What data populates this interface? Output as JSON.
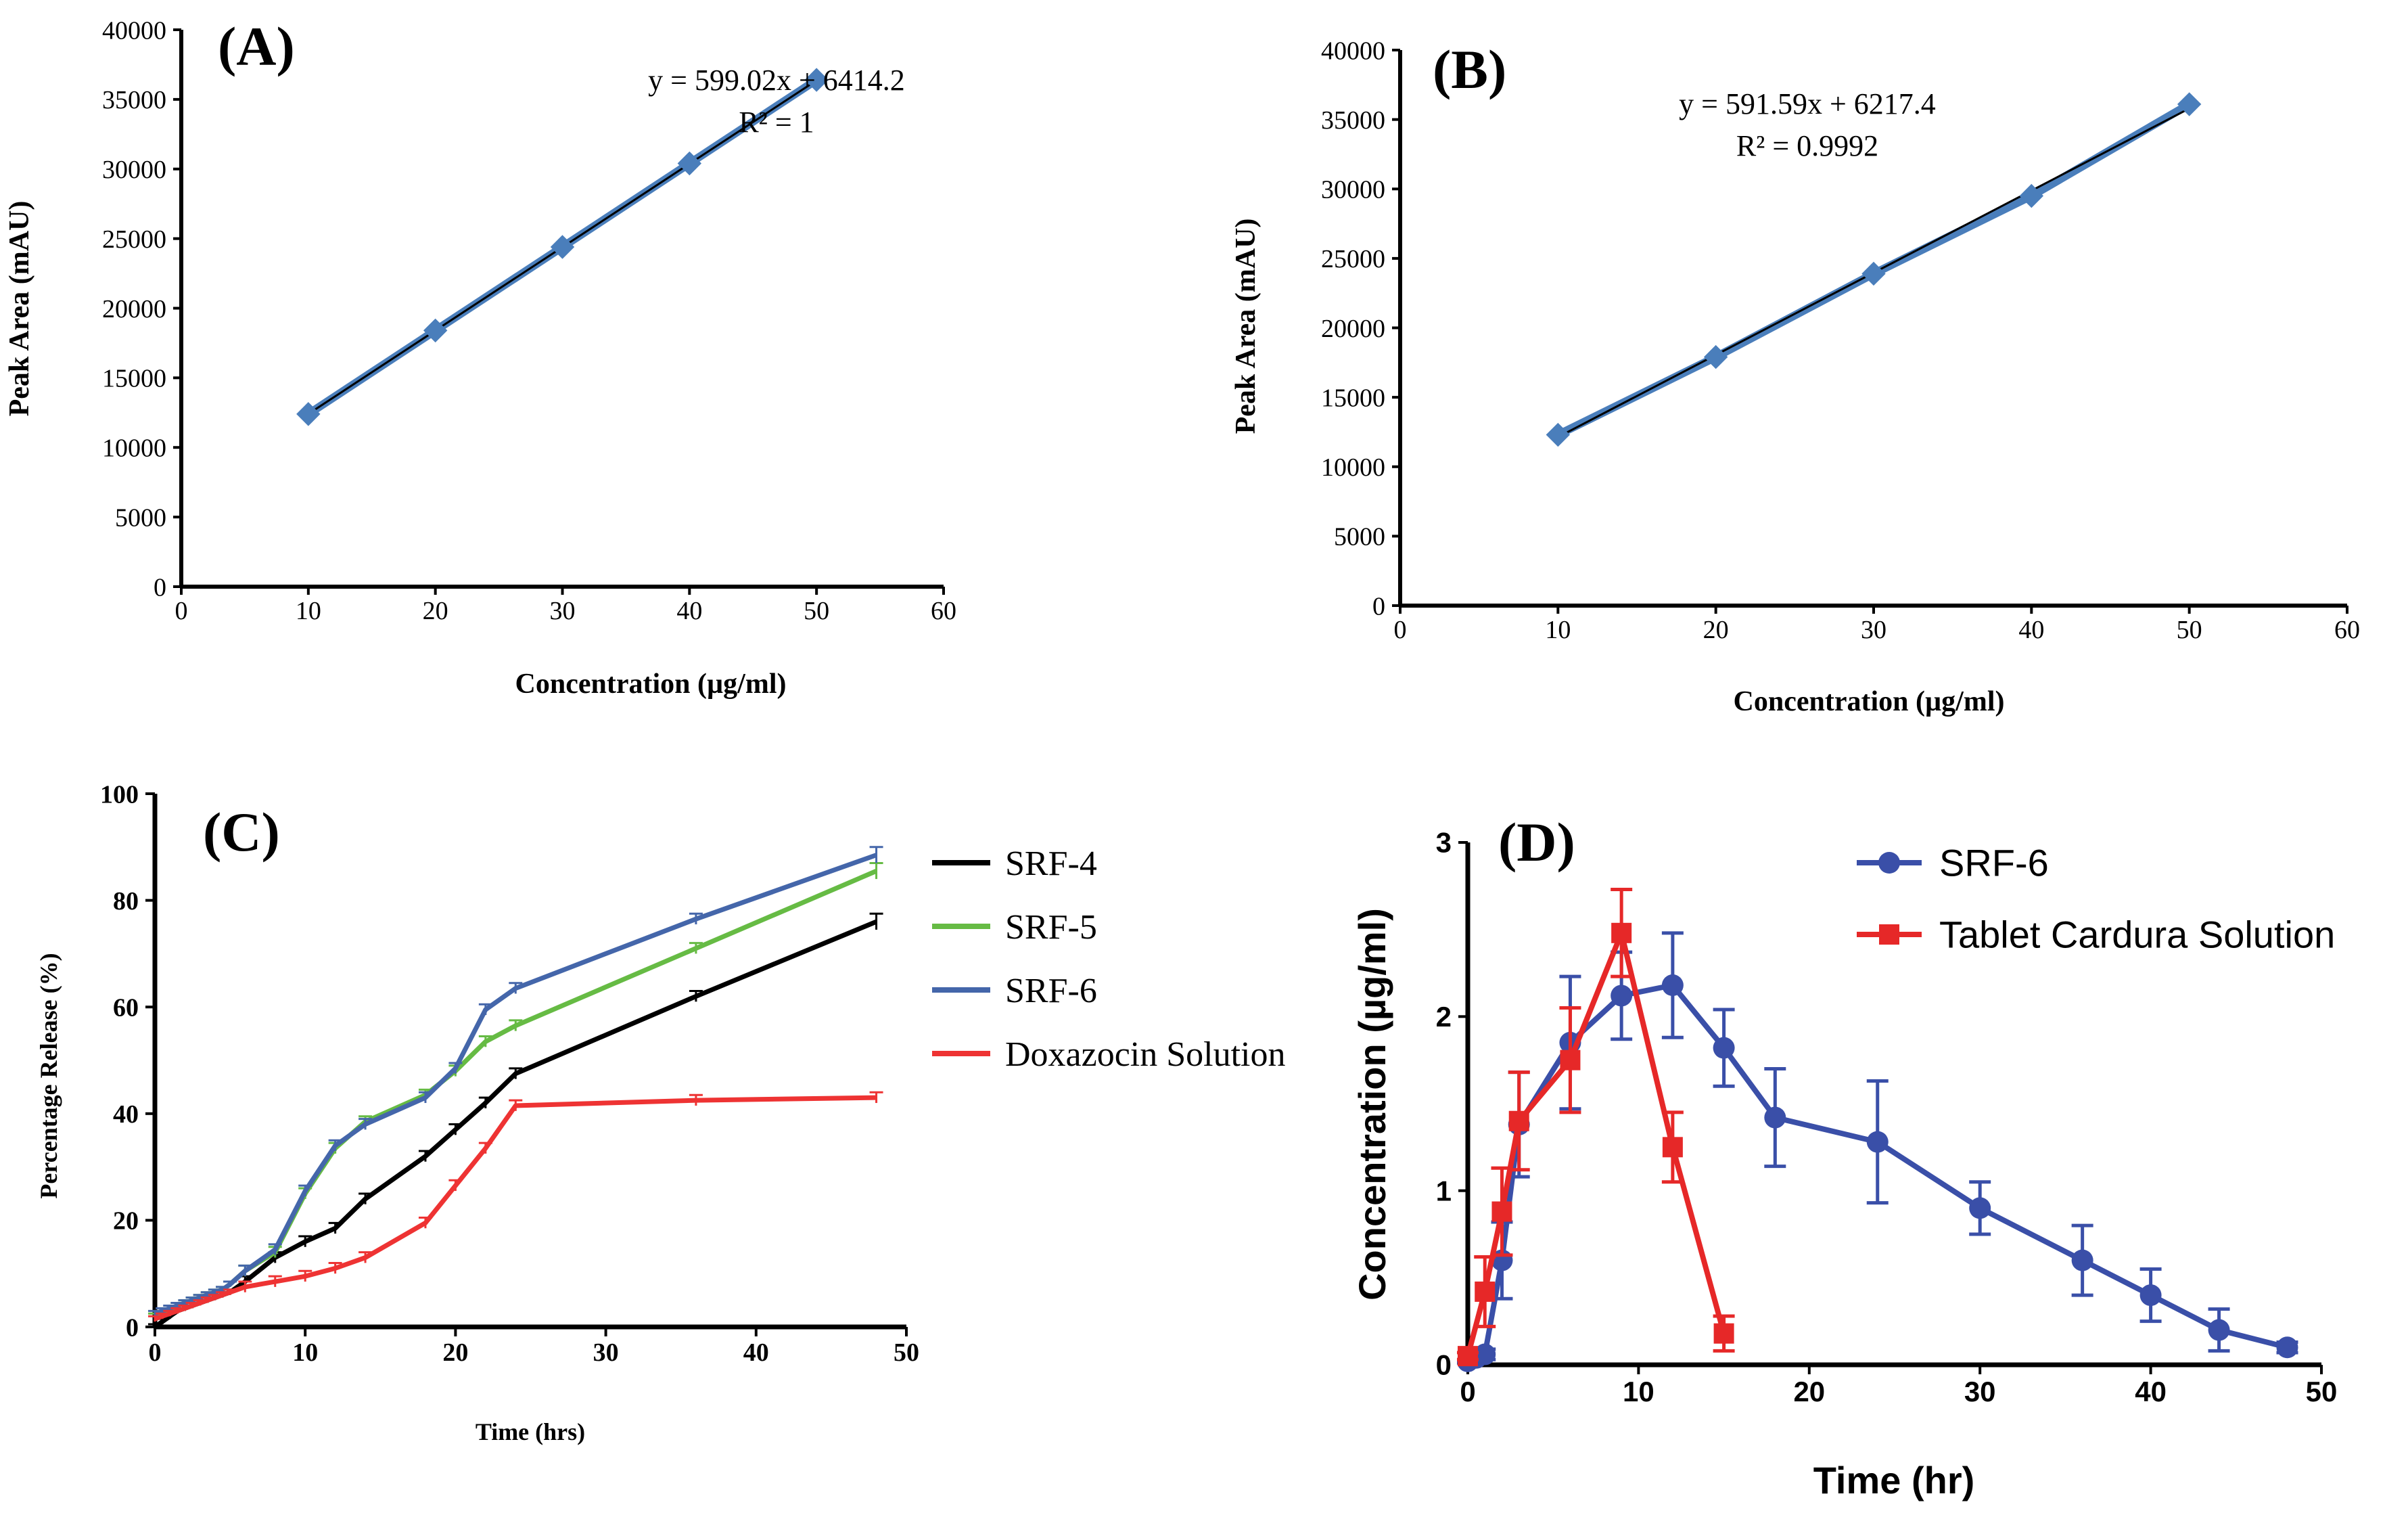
{
  "figure": {
    "panels": [
      "(A)",
      "(B)",
      "(C)",
      "(D)"
    ]
  },
  "chart_data": [
    {
      "panel": "(A)",
      "type": "scatter",
      "title": "",
      "xlabel": "Concentration (µg/ml)",
      "ylabel": "Peak Area (mAU)",
      "xlim": [
        0,
        60
      ],
      "ylim": [
        0,
        40000
      ],
      "xticks": [
        0,
        10,
        20,
        30,
        40,
        50,
        60
      ],
      "yticks": [
        0,
        5000,
        10000,
        15000,
        20000,
        25000,
        30000,
        35000,
        40000
      ],
      "series": [
        {
          "name": "Peak Area",
          "color": "#4a7ebb",
          "marker": "diamond",
          "x": [
            10,
            20,
            30,
            40,
            50
          ],
          "y": [
            12400,
            18400,
            24400,
            30400,
            36400
          ]
        }
      ],
      "trendline": {
        "slope": 599.02,
        "intercept": 6414.2,
        "x_range": [
          10,
          50
        ],
        "color": "#000000"
      },
      "annotations": [
        "y = 599.02x + 6414.2",
        "R² = 1"
      ]
    },
    {
      "panel": "(B)",
      "type": "scatter",
      "title": "",
      "xlabel": "Concentration (µg/ml)",
      "ylabel": "Peak Area (mAU)",
      "xlim": [
        0,
        60
      ],
      "ylim": [
        0,
        40000
      ],
      "xticks": [
        0,
        10,
        20,
        30,
        40,
        50,
        60
      ],
      "yticks": [
        0,
        5000,
        10000,
        15000,
        20000,
        25000,
        30000,
        35000,
        40000
      ],
      "series": [
        {
          "name": "Peak Area",
          "color": "#4a7ebb",
          "marker": "diamond",
          "x": [
            10,
            20,
            30,
            40,
            50
          ],
          "y": [
            12300,
            17900,
            23900,
            29500,
            36100
          ]
        }
      ],
      "trendline": {
        "slope": 591.59,
        "intercept": 6217.4,
        "x_range": [
          10,
          50
        ],
        "color": "#000000"
      },
      "annotations": [
        "y = 591.59x + 6217.4",
        "R² = 0.9992"
      ]
    },
    {
      "panel": "(C)",
      "type": "line",
      "title": "",
      "xlabel": "Time (hrs)",
      "ylabel": "Percentage Release (%)",
      "xlim": [
        0,
        50
      ],
      "ylim": [
        0,
        100
      ],
      "xticks": [
        0,
        10,
        20,
        30,
        40,
        50
      ],
      "yticks": [
        0,
        20,
        40,
        60,
        80,
        100
      ],
      "legend": "right",
      "series": [
        {
          "name": "SRF-4",
          "color": "#000000",
          "x": [
            0,
            0.5,
            1,
            1.5,
            2,
            2.5,
            3,
            3.5,
            4,
            4.5,
            5,
            6,
            8,
            10,
            12,
            14,
            18,
            20,
            22,
            24,
            36,
            48
          ],
          "y": [
            0,
            1,
            2,
            3,
            3.5,
            4,
            4.5,
            5,
            5.5,
            6,
            6.5,
            8.5,
            13,
            16,
            18.5,
            24,
            32,
            37,
            42,
            47.5,
            62,
            76
          ],
          "err": [
            0.5,
            0.5,
            0.5,
            0.5,
            0.5,
            0.5,
            0.5,
            0.5,
            0.5,
            0.5,
            0.5,
            1,
            1,
            1,
            1,
            1,
            1,
            1,
            1,
            1,
            1,
            1.5
          ]
        },
        {
          "name": "SRF-5",
          "color": "#66bb44",
          "x": [
            0,
            0.5,
            1,
            1.5,
            2,
            2.5,
            3,
            3.5,
            4,
            4.5,
            5,
            6,
            8,
            10,
            12,
            14,
            18,
            20,
            22,
            24,
            36,
            48
          ],
          "y": [
            2,
            2.5,
            3,
            4,
            4.5,
            5,
            5.5,
            6,
            6.5,
            7,
            8,
            10.5,
            14,
            25,
            33.5,
            38.5,
            43.5,
            48,
            53.5,
            56.5,
            71,
            85.5
          ],
          "err": [
            0.5,
            0.5,
            0.5,
            0.5,
            0.5,
            0.5,
            0.5,
            0.5,
            0.5,
            0.5,
            0.5,
            1,
            1,
            1,
            1,
            1,
            1,
            1,
            1,
            1,
            1,
            1.5
          ]
        },
        {
          "name": "SRF-6",
          "color": "#4466aa",
          "x": [
            0,
            0.5,
            1,
            1.5,
            2,
            2.5,
            3,
            3.5,
            4,
            4.5,
            5,
            6,
            8,
            10,
            12,
            14,
            18,
            20,
            22,
            24,
            36,
            48
          ],
          "y": [
            2.5,
            3,
            3.5,
            4,
            4.5,
            5,
            5.5,
            6,
            6.5,
            7,
            8,
            10.5,
            14.5,
            25.5,
            34,
            38,
            43,
            48.5,
            59.5,
            63.5,
            76.5,
            88.5
          ],
          "err": [
            0.5,
            0.5,
            0.5,
            0.5,
            0.5,
            0.5,
            0.5,
            0.5,
            0.5,
            0.5,
            0.5,
            1,
            1,
            1,
            1,
            1,
            1,
            1,
            1,
            1,
            1,
            1.5
          ]
        },
        {
          "name": "Doxazocin Solution",
          "color": "#ee3333",
          "x": [
            0,
            0.5,
            1,
            1.5,
            2,
            2.5,
            3,
            3.5,
            4,
            4.5,
            5,
            6,
            8,
            10,
            12,
            14,
            18,
            20,
            22,
            24,
            36,
            48
          ],
          "y": [
            1.5,
            2,
            2.5,
            3,
            3.5,
            4,
            4.5,
            5,
            5.5,
            6,
            6.5,
            7.5,
            8.5,
            9.5,
            11,
            13,
            19.5,
            26.5,
            33.5,
            41.5,
            42.5,
            43
          ],
          "err": [
            0.5,
            0.5,
            0.5,
            0.5,
            0.5,
            0.5,
            0.5,
            0.5,
            0.5,
            0.5,
            0.5,
            1,
            1,
            1,
            1,
            1,
            1,
            1,
            1,
            1,
            1,
            1
          ]
        }
      ]
    },
    {
      "panel": "(D)",
      "type": "line",
      "title": "",
      "xlabel": "Time (hr)",
      "ylabel": "Concentration (µg/ml)",
      "xlim": [
        0,
        50
      ],
      "ylim": [
        0,
        3
      ],
      "xticks": [
        0,
        10,
        20,
        30,
        40,
        50
      ],
      "yticks": [
        0,
        1,
        2,
        3
      ],
      "legend": "top-right",
      "series": [
        {
          "name": "SRF-6",
          "color": "#3a4fa8",
          "marker": "circle",
          "x": [
            0,
            0.5,
            1,
            2,
            3,
            6,
            9,
            12,
            15,
            18,
            24,
            30,
            36,
            40,
            44,
            48
          ],
          "y": [
            0.02,
            0.04,
            0.06,
            0.6,
            1.38,
            1.85,
            2.12,
            2.18,
            1.82,
            1.42,
            1.28,
            0.9,
            0.6,
            0.4,
            0.2,
            0.1
          ],
          "err": [
            0.01,
            0.02,
            0.03,
            0.22,
            0.3,
            0.38,
            0.25,
            0.3,
            0.22,
            0.28,
            0.35,
            0.15,
            0.2,
            0.15,
            0.12,
            0.03
          ]
        },
        {
          "name": "Tablet Cardura Solution",
          "color": "#e62828",
          "marker": "square",
          "x": [
            0,
            1,
            2,
            3,
            6,
            9,
            12,
            15
          ],
          "y": [
            0.05,
            0.42,
            0.88,
            1.4,
            1.75,
            2.48,
            1.25,
            0.18
          ],
          "err": [
            0.02,
            0.2,
            0.25,
            0.28,
            0.3,
            0.25,
            0.2,
            0.1
          ]
        }
      ]
    }
  ]
}
